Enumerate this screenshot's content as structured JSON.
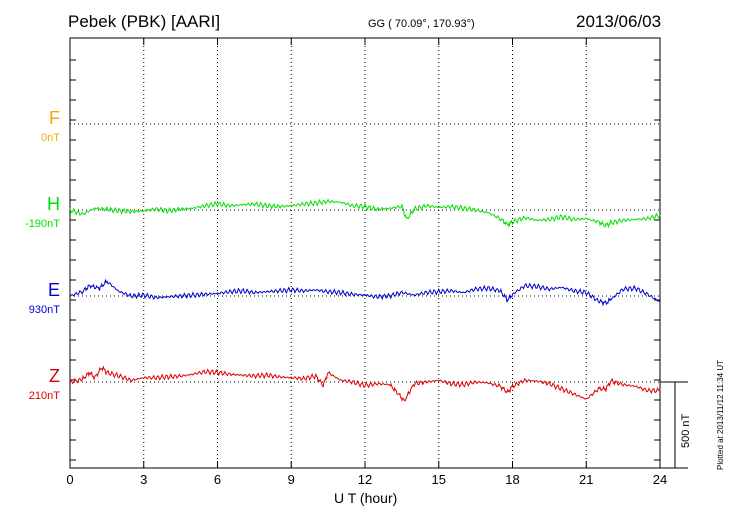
{
  "header": {
    "station": "Pebek (PBK)  [AARI]",
    "coords": "GG ( 70.09°, 170.93°)",
    "date": "2013/06/03"
  },
  "footer": {
    "plotted": "Plotted at 2013/11/12 11:34 UT"
  },
  "colors": {
    "F": "#ffa500",
    "H": "#00e000",
    "E": "#0000cc",
    "Z": "#e00000",
    "grid": "#000000"
  },
  "chart_data": {
    "type": "line",
    "title": "Pebek (PBK)  [AARI]",
    "xlabel": "U T (hour)",
    "ylabel": "",
    "xlim": [
      0,
      24
    ],
    "xticks": [
      0,
      3,
      6,
      9,
      12,
      15,
      18,
      21,
      24
    ],
    "scale_bar": "500 nT",
    "components": [
      {
        "name": "F",
        "baseline_label": "0nT",
        "values": []
      },
      {
        "name": "H",
        "baseline_label": "-190nT",
        "x": [
          0,
          0.5,
          1,
          1.5,
          2,
          2.5,
          3,
          3.5,
          4,
          4.5,
          5,
          5.5,
          6,
          6.5,
          7,
          7.5,
          8,
          8.5,
          9,
          9.5,
          10,
          10.5,
          11,
          11.5,
          12,
          12.5,
          13,
          13.5,
          13.7,
          14,
          14.5,
          15,
          15.5,
          16,
          16.5,
          17,
          17.5,
          17.8,
          18,
          18.5,
          19,
          19.5,
          20,
          20.5,
          21,
          21.5,
          21.8,
          22,
          22.5,
          23,
          23.5,
          24
        ],
        "values": [
          0,
          -25,
          10,
          5,
          -5,
          -10,
          -5,
          5,
          -5,
          5,
          10,
          25,
          35,
          25,
          30,
          35,
          25,
          20,
          25,
          35,
          40,
          50,
          45,
          25,
          20,
          5,
          10,
          20,
          -55,
          5,
          25,
          15,
          20,
          10,
          0,
          -15,
          -50,
          -85,
          -70,
          -45,
          -60,
          -55,
          -40,
          -55,
          -50,
          -70,
          -90,
          -75,
          -60,
          -55,
          -50,
          -30
        ]
      },
      {
        "name": "E",
        "baseline_label": "930nT",
        "x": [
          0,
          0.5,
          0.8,
          1.2,
          1.5,
          2,
          2.5,
          3,
          3.5,
          4,
          4.5,
          5,
          5.5,
          6,
          6.5,
          7,
          7.5,
          8,
          8.5,
          9,
          9.5,
          10,
          10.5,
          11,
          11.5,
          12,
          12.5,
          13,
          13.5,
          14,
          14.5,
          15,
          15.5,
          16,
          16.5,
          17,
          17.5,
          17.8,
          18,
          18.5,
          19,
          19.5,
          20,
          20.5,
          21,
          21.5,
          21.8,
          22,
          22.5,
          23,
          23.5,
          24
        ],
        "values": [
          0,
          25,
          60,
          45,
          85,
          25,
          0,
          5,
          -10,
          -5,
          0,
          5,
          10,
          15,
          25,
          30,
          20,
          25,
          30,
          35,
          30,
          35,
          25,
          20,
          10,
          5,
          -5,
          0,
          20,
          5,
          20,
          25,
          30,
          20,
          40,
          45,
          30,
          -25,
          10,
          60,
          55,
          40,
          50,
          30,
          20,
          -30,
          -40,
          -20,
          40,
          45,
          10,
          -35
        ]
      },
      {
        "name": "Z",
        "baseline_label": "210nT",
        "x": [
          0,
          0.5,
          0.8,
          1,
          1.3,
          1.5,
          2,
          2.5,
          3,
          3.5,
          4,
          4.5,
          5,
          5.5,
          6,
          6.5,
          7,
          7.5,
          8,
          8.5,
          9,
          9.5,
          10,
          10.3,
          10.5,
          11,
          11.5,
          12,
          12.5,
          13,
          13.3,
          13.6,
          14,
          14.5,
          15,
          15.5,
          16,
          16.5,
          17,
          17.5,
          17.8,
          18,
          18.5,
          19,
          19.5,
          20,
          20.5,
          21,
          21.5,
          21.8,
          22,
          22.5,
          23,
          23.5,
          24
        ],
        "values": [
          0,
          15,
          55,
          25,
          85,
          55,
          35,
          10,
          25,
          25,
          30,
          35,
          45,
          60,
          55,
          45,
          40,
          35,
          40,
          30,
          25,
          20,
          35,
          -20,
          55,
          10,
          0,
          -20,
          -10,
          -15,
          -60,
          -110,
          -10,
          0,
          10,
          -10,
          -15,
          0,
          -5,
          -25,
          -60,
          -25,
          10,
          5,
          -10,
          -40,
          -70,
          -100,
          -40,
          -40,
          5,
          -15,
          -25,
          -50,
          -50
        ]
      }
    ]
  }
}
